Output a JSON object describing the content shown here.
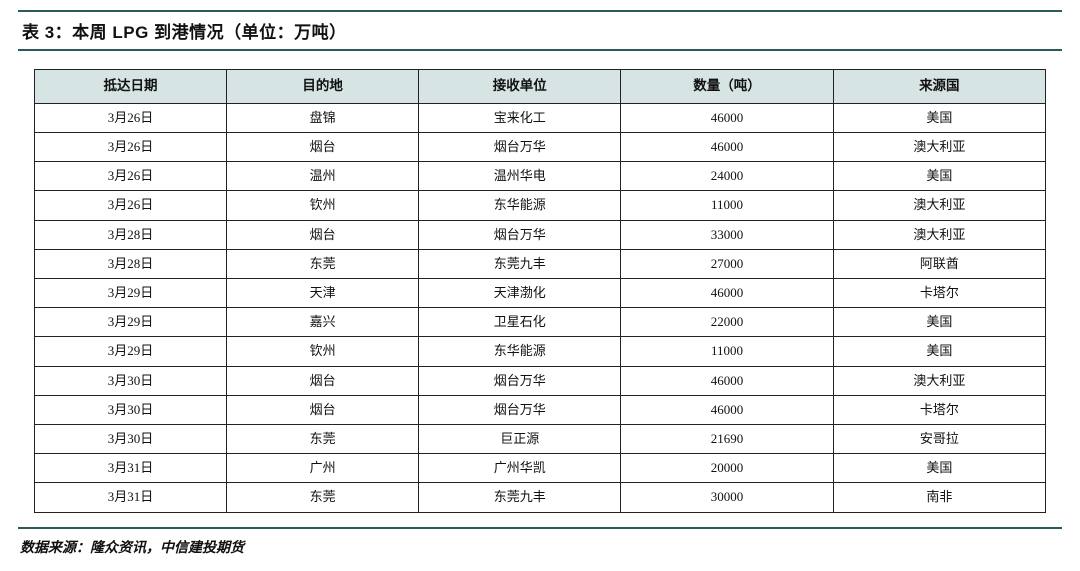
{
  "title": "表 3：本周 LPG 到港情况（单位：万吨）",
  "columns": [
    "抵达日期",
    "目的地",
    "接收单位",
    "数量（吨）",
    "来源国"
  ],
  "col_widths_pct": [
    19,
    19,
    20,
    21,
    21
  ],
  "rows": [
    [
      "3月26日",
      "盘锦",
      "宝来化工",
      "46000",
      "美国"
    ],
    [
      "3月26日",
      "烟台",
      "烟台万华",
      "46000",
      "澳大利亚"
    ],
    [
      "3月26日",
      "温州",
      "温州华电",
      "24000",
      "美国"
    ],
    [
      "3月26日",
      "钦州",
      "东华能源",
      "11000",
      "澳大利亚"
    ],
    [
      "3月28日",
      "烟台",
      "烟台万华",
      "33000",
      "澳大利亚"
    ],
    [
      "3月28日",
      "东莞",
      "东莞九丰",
      "27000",
      "阿联酋"
    ],
    [
      "3月29日",
      "天津",
      "天津渤化",
      "46000",
      "卡塔尔"
    ],
    [
      "3月29日",
      "嘉兴",
      "卫星石化",
      "22000",
      "美国"
    ],
    [
      "3月29日",
      "钦州",
      "东华能源",
      "11000",
      "美国"
    ],
    [
      "3月30日",
      "烟台",
      "烟台万华",
      "46000",
      "澳大利亚"
    ],
    [
      "3月30日",
      "烟台",
      "烟台万华",
      "46000",
      "卡塔尔"
    ],
    [
      "3月30日",
      "东莞",
      "巨正源",
      "21690",
      "安哥拉"
    ],
    [
      "3月31日",
      "广州",
      "广州华凯",
      "20000",
      "美国"
    ],
    [
      "3月31日",
      "东莞",
      "东莞九丰",
      "30000",
      "南非"
    ]
  ],
  "source": "数据来源：隆众资讯，中信建投期货",
  "style": {
    "rule_color": "#2a5a5a",
    "header_bg": "#d7e4e4",
    "cell_border": "#222222",
    "font_body": "SimSun",
    "title_fontsize": 17,
    "header_fontsize": 13.5,
    "cell_fontsize": 13,
    "source_fontsize": 14
  }
}
